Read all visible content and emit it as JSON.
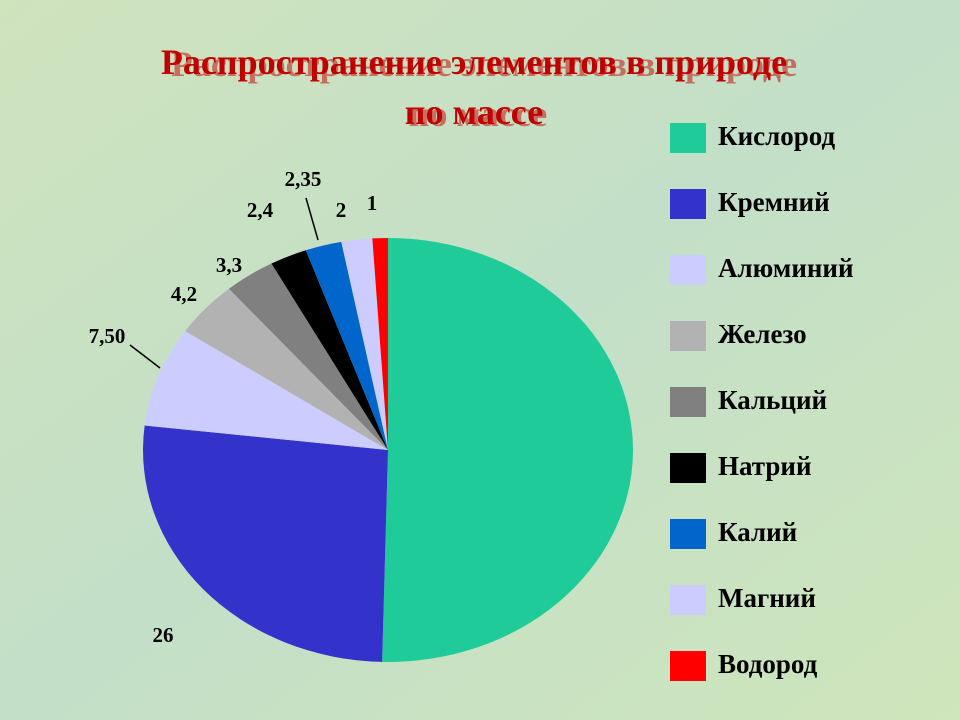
{
  "chart_data": {
    "type": "pie",
    "title": [
      "Распространение элементов в природе",
      "по массе"
    ],
    "categories": [
      "Кислород",
      "Кремний",
      "Алюминий",
      "Железо",
      "Кальций",
      "Натрий",
      "Калий",
      "Магний",
      "Водород"
    ],
    "values": [
      49.5,
      26,
      7.5,
      4.2,
      3.3,
      2.4,
      2.35,
      2,
      1
    ],
    "value_labels": [
      null,
      "26",
      "7,50",
      "4,2",
      "3,3",
      "2,4",
      "2,35",
      "2",
      "1"
    ],
    "colors": [
      "#1fcc99",
      "#3333cc",
      "#ccccff",
      "#b2b2b2",
      "#808080",
      "#000000",
      "#0066cc",
      "#ccccff",
      "#ff0000"
    ],
    "legend": "right"
  }
}
